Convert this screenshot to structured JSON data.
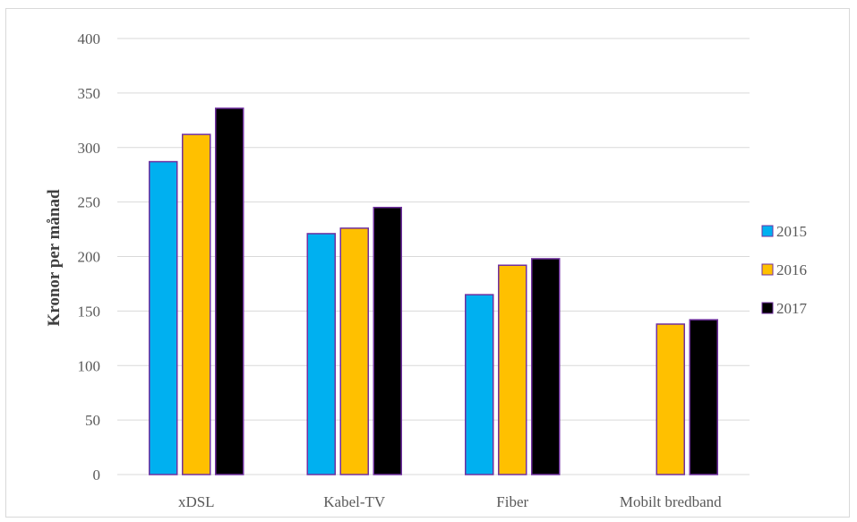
{
  "chart_data": {
    "type": "bar",
    "title": "",
    "xlabel": "",
    "ylabel": "Kronor per månad",
    "ylim": [
      0,
      400
    ],
    "yticks": [
      0,
      50,
      100,
      150,
      200,
      250,
      300,
      350,
      400
    ],
    "grid": true,
    "legend_position": "right",
    "categories": [
      "xDSL",
      "Kabel-TV",
      "Fiber",
      "Mobilt bredband"
    ],
    "series": [
      {
        "name": "2015",
        "color": "#00b0f0",
        "values": [
          287,
          221,
          165,
          null
        ]
      },
      {
        "name": "2016",
        "color": "#ffc000",
        "values": [
          312,
          226,
          192,
          138
        ]
      },
      {
        "name": "2017",
        "color": "#000000",
        "values": [
          336,
          245,
          198,
          142
        ]
      }
    ],
    "bar_edge_color": "#7030a0"
  }
}
